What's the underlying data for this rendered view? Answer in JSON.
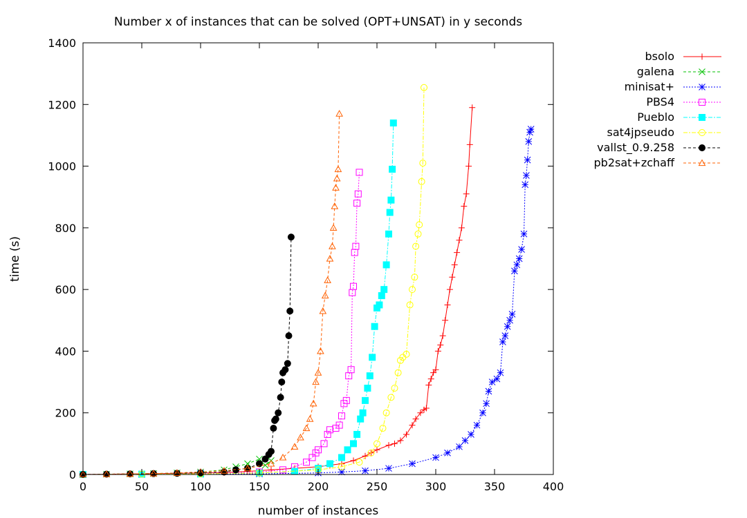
{
  "chart_data": {
    "type": "line",
    "title": "Number x of instances that can be solved (OPT+UNSAT) in y seconds",
    "xlabel": "number of instances",
    "ylabel": "time (s)",
    "xlim": [
      0,
      400
    ],
    "ylim": [
      0,
      1400
    ],
    "xticks": [
      0,
      50,
      100,
      150,
      200,
      250,
      300,
      350,
      400
    ],
    "yticks": [
      0,
      200,
      400,
      600,
      800,
      1000,
      1200,
      1400
    ],
    "xtick_labels": [
      "0",
      "50",
      "100",
      "150",
      "200",
      "250",
      "300",
      "350",
      "400"
    ],
    "ytick_labels": [
      "0",
      "200",
      "400",
      "600",
      "800",
      "1000",
      "1200",
      "1400"
    ],
    "grid": false,
    "legend_position": "outside-top-right",
    "series": [
      {
        "name": "bsolo",
        "color": "#ff0000",
        "marker": "plus",
        "dash": "solid",
        "points": [
          [
            0,
            0
          ],
          [
            20,
            1
          ],
          [
            40,
            2
          ],
          [
            60,
            3
          ],
          [
            80,
            4
          ],
          [
            100,
            5
          ],
          [
            120,
            6
          ],
          [
            140,
            10
          ],
          [
            160,
            15
          ],
          [
            180,
            20
          ],
          [
            200,
            25
          ],
          [
            210,
            30
          ],
          [
            220,
            35
          ],
          [
            230,
            45
          ],
          [
            240,
            60
          ],
          [
            245,
            70
          ],
          [
            250,
            80
          ],
          [
            260,
            95
          ],
          [
            265,
            100
          ],
          [
            270,
            110
          ],
          [
            275,
            130
          ],
          [
            280,
            160
          ],
          [
            283,
            180
          ],
          [
            287,
            200
          ],
          [
            290,
            210
          ],
          [
            292,
            215
          ],
          [
            294,
            290
          ],
          [
            296,
            310
          ],
          [
            298,
            330
          ],
          [
            300,
            340
          ],
          [
            302,
            400
          ],
          [
            304,
            420
          ],
          [
            306,
            450
          ],
          [
            308,
            500
          ],
          [
            310,
            550
          ],
          [
            312,
            600
          ],
          [
            314,
            640
          ],
          [
            316,
            680
          ],
          [
            318,
            720
          ],
          [
            320,
            760
          ],
          [
            322,
            800
          ],
          [
            324,
            870
          ],
          [
            326,
            910
          ],
          [
            328,
            1000
          ],
          [
            329,
            1070
          ],
          [
            331,
            1190
          ]
        ]
      },
      {
        "name": "galena",
        "color": "#00c000",
        "marker": "cross",
        "dash": "dashed",
        "points": [
          [
            0,
            0
          ],
          [
            20,
            1
          ],
          [
            40,
            2
          ],
          [
            60,
            3
          ],
          [
            80,
            5
          ],
          [
            100,
            8
          ],
          [
            120,
            15
          ],
          [
            130,
            25
          ],
          [
            140,
            35
          ],
          [
            150,
            50
          ],
          [
            155,
            30
          ],
          [
            160,
            45
          ]
        ]
      },
      {
        "name": "minisat+",
        "color": "#0000ff",
        "marker": "star",
        "dash": "dotted",
        "points": [
          [
            0,
            0
          ],
          [
            50,
            0
          ],
          [
            100,
            1
          ],
          [
            150,
            2
          ],
          [
            200,
            5
          ],
          [
            220,
            8
          ],
          [
            240,
            12
          ],
          [
            260,
            20
          ],
          [
            280,
            35
          ],
          [
            300,
            55
          ],
          [
            310,
            70
          ],
          [
            320,
            90
          ],
          [
            325,
            110
          ],
          [
            330,
            130
          ],
          [
            335,
            160
          ],
          [
            340,
            200
          ],
          [
            343,
            230
          ],
          [
            345,
            270
          ],
          [
            348,
            300
          ],
          [
            352,
            310
          ],
          [
            355,
            330
          ],
          [
            357,
            430
          ],
          [
            359,
            450
          ],
          [
            361,
            480
          ],
          [
            363,
            500
          ],
          [
            365,
            520
          ],
          [
            367,
            660
          ],
          [
            369,
            680
          ],
          [
            371,
            700
          ],
          [
            373,
            730
          ],
          [
            375,
            780
          ],
          [
            376,
            940
          ],
          [
            377,
            970
          ],
          [
            378,
            1020
          ],
          [
            379,
            1080
          ],
          [
            380,
            1110
          ],
          [
            381,
            1120
          ]
        ]
      },
      {
        "name": "PBS4",
        "color": "#ff00ff",
        "marker": "box",
        "dash": "dotted",
        "points": [
          [
            0,
            0
          ],
          [
            50,
            1
          ],
          [
            100,
            3
          ],
          [
            150,
            8
          ],
          [
            170,
            15
          ],
          [
            180,
            25
          ],
          [
            190,
            40
          ],
          [
            195,
            55
          ],
          [
            198,
            70
          ],
          [
            200,
            80
          ],
          [
            205,
            100
          ],
          [
            208,
            130
          ],
          [
            210,
            145
          ],
          [
            215,
            150
          ],
          [
            218,
            160
          ],
          [
            220,
            190
          ],
          [
            222,
            230
          ],
          [
            224,
            240
          ],
          [
            226,
            320
          ],
          [
            228,
            340
          ],
          [
            229,
            590
          ],
          [
            230,
            610
          ],
          [
            231,
            720
          ],
          [
            232,
            740
          ],
          [
            233,
            880
          ],
          [
            234,
            910
          ],
          [
            235,
            980
          ]
        ]
      },
      {
        "name": "Pueblo",
        "color": "#00ffff",
        "marker": "filledbox",
        "dash": "dashdot",
        "points": [
          [
            0,
            0
          ],
          [
            50,
            1
          ],
          [
            100,
            2
          ],
          [
            150,
            5
          ],
          [
            180,
            10
          ],
          [
            200,
            20
          ],
          [
            210,
            35
          ],
          [
            220,
            55
          ],
          [
            225,
            80
          ],
          [
            230,
            100
          ],
          [
            233,
            130
          ],
          [
            236,
            180
          ],
          [
            238,
            200
          ],
          [
            240,
            240
          ],
          [
            242,
            280
          ],
          [
            244,
            320
          ],
          [
            246,
            380
          ],
          [
            248,
            480
          ],
          [
            250,
            540
          ],
          [
            252,
            550
          ],
          [
            254,
            580
          ],
          [
            256,
            600
          ],
          [
            258,
            680
          ],
          [
            260,
            780
          ],
          [
            261,
            850
          ],
          [
            262,
            890
          ],
          [
            263,
            990
          ],
          [
            264,
            1140
          ]
        ]
      },
      {
        "name": "sat4jpseudo",
        "color": "#ffff00",
        "marker": "circle",
        "dash": "dashdot",
        "points": [
          [
            0,
            0
          ],
          [
            50,
            1
          ],
          [
            100,
            2
          ],
          [
            150,
            5
          ],
          [
            200,
            15
          ],
          [
            220,
            25
          ],
          [
            235,
            40
          ],
          [
            245,
            70
          ],
          [
            250,
            100
          ],
          [
            255,
            150
          ],
          [
            258,
            200
          ],
          [
            262,
            250
          ],
          [
            265,
            280
          ],
          [
            268,
            330
          ],
          [
            270,
            370
          ],
          [
            272,
            380
          ],
          [
            275,
            390
          ],
          [
            278,
            550
          ],
          [
            280,
            600
          ],
          [
            282,
            640
          ],
          [
            283,
            740
          ],
          [
            285,
            780
          ],
          [
            286,
            810
          ],
          [
            288,
            950
          ],
          [
            289,
            1010
          ],
          [
            290,
            1255
          ]
        ]
      },
      {
        "name": "vallst_0.9.258",
        "color": "#000000",
        "marker": "filledcircle",
        "dash": "dashed",
        "points": [
          [
            0,
            0
          ],
          [
            20,
            1
          ],
          [
            40,
            2
          ],
          [
            60,
            3
          ],
          [
            80,
            4
          ],
          [
            100,
            5
          ],
          [
            120,
            8
          ],
          [
            130,
            15
          ],
          [
            140,
            20
          ],
          [
            150,
            35
          ],
          [
            155,
            50
          ],
          [
            158,
            65
          ],
          [
            160,
            75
          ],
          [
            162,
            150
          ],
          [
            163,
            175
          ],
          [
            164,
            180
          ],
          [
            166,
            200
          ],
          [
            168,
            250
          ],
          [
            169,
            300
          ],
          [
            170,
            330
          ],
          [
            172,
            340
          ],
          [
            174,
            360
          ],
          [
            175,
            450
          ],
          [
            176,
            530
          ],
          [
            177,
            770
          ]
        ]
      },
      {
        "name": "pb2sat+zchaff",
        "color": "#ff6000",
        "marker": "triangle",
        "dash": "dashed",
        "points": [
          [
            0,
            0
          ],
          [
            20,
            1
          ],
          [
            40,
            2
          ],
          [
            60,
            3
          ],
          [
            80,
            5
          ],
          [
            100,
            8
          ],
          [
            120,
            12
          ],
          [
            140,
            20
          ],
          [
            160,
            35
          ],
          [
            170,
            55
          ],
          [
            180,
            90
          ],
          [
            185,
            120
          ],
          [
            190,
            150
          ],
          [
            193,
            180
          ],
          [
            196,
            230
          ],
          [
            198,
            300
          ],
          [
            200,
            330
          ],
          [
            202,
            400
          ],
          [
            204,
            530
          ],
          [
            206,
            580
          ],
          [
            208,
            630
          ],
          [
            210,
            700
          ],
          [
            212,
            740
          ],
          [
            213,
            800
          ],
          [
            214,
            870
          ],
          [
            215,
            930
          ],
          [
            216,
            960
          ],
          [
            217,
            990
          ],
          [
            218,
            1170
          ]
        ]
      }
    ]
  }
}
